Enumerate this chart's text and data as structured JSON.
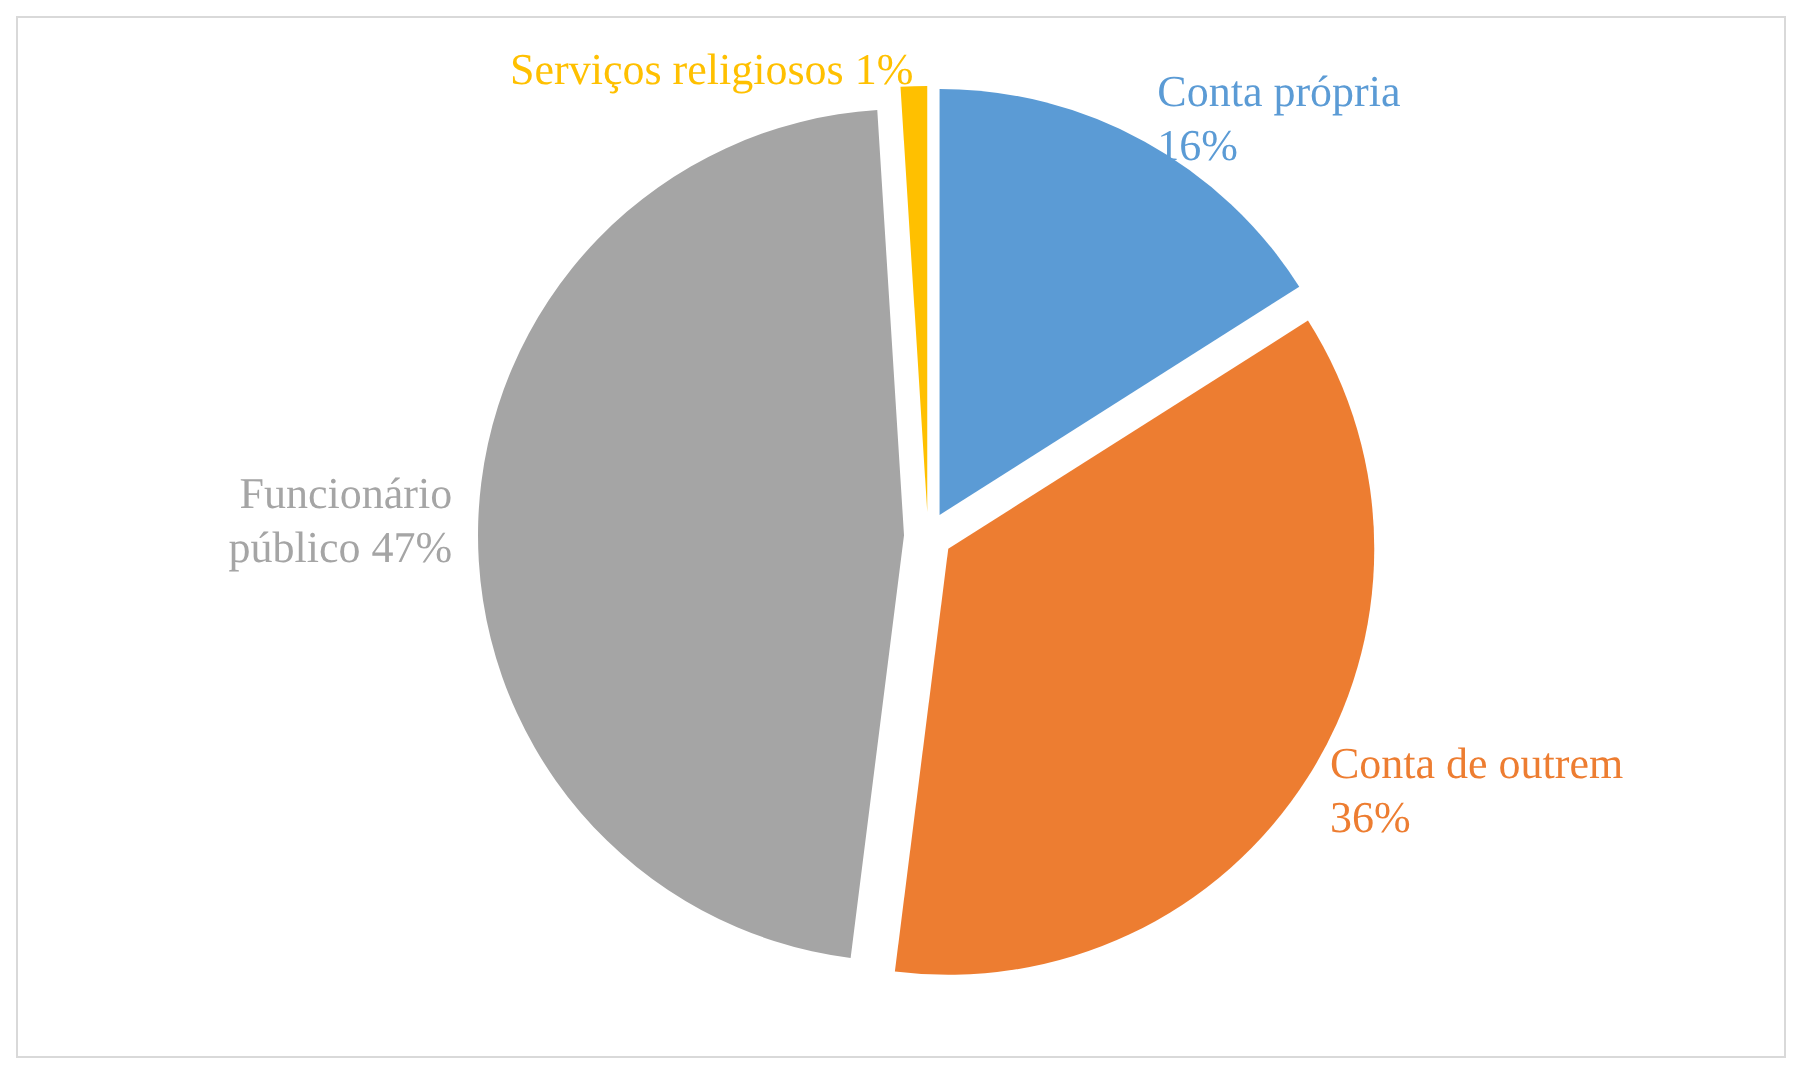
{
  "chart_data": {
    "type": "pie",
    "categories": [
      "Conta própria",
      "Conta de outrem",
      "Funcionário público",
      "Serviços religiosos"
    ],
    "values": [
      16,
      36,
      47,
      1
    ],
    "value_labels": [
      "16%",
      "36%",
      "47%",
      "1%"
    ],
    "colors": [
      "#5b9bd5",
      "#ed7d31",
      "#a5a5a5",
      "#ffc000"
    ],
    "legend": false
  }
}
